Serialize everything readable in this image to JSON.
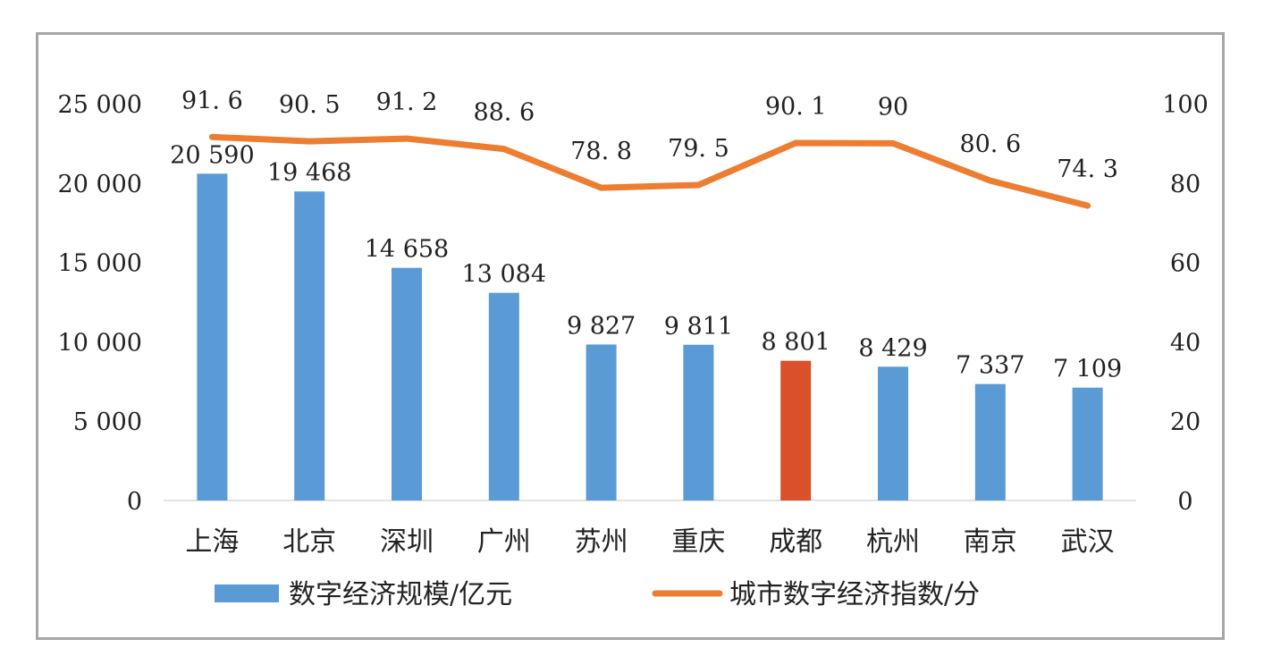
{
  "chart_data": {
    "type": "bar",
    "categories": [
      "上海",
      "北京",
      "深圳",
      "广州",
      "苏州",
      "重庆",
      "成都",
      "杭州",
      "南京",
      "武汉"
    ],
    "series": [
      {
        "name": "数字经济规模/亿元",
        "type": "bar",
        "axis": "left",
        "values": [
          20590,
          19468,
          14658,
          13084,
          9827,
          9811,
          8801,
          8429,
          7337,
          7109
        ],
        "labels": [
          "20 590",
          "19 468",
          "14 658",
          "13 084",
          "9 827",
          "9 811",
          "8 801",
          "8 429",
          "7 337",
          "7 109"
        ],
        "color": "#5b9bd5",
        "highlight_index": 6,
        "highlight_color": "#d9502b"
      },
      {
        "name": "城市数字经济指数/分",
        "type": "line",
        "axis": "right",
        "values": [
          91.6,
          90.5,
          91.2,
          88.6,
          78.8,
          79.5,
          90.1,
          90,
          80.6,
          74.3
        ],
        "labels": [
          "91. 6",
          "90. 5",
          "91. 2",
          "88. 6",
          "78. 8",
          "79. 5",
          "90. 1",
          "90",
          "80. 6",
          "74. 3"
        ],
        "color": "#ed7d31"
      }
    ],
    "y_left": {
      "ylim": [
        0,
        25000
      ],
      "ticks": [
        0,
        5000,
        10000,
        15000,
        20000,
        25000
      ],
      "tick_labels": [
        "0",
        "5 000",
        "10 000",
        "15 000",
        "20 000",
        "25 000"
      ]
    },
    "y_right": {
      "ylim": [
        0,
        100
      ],
      "ticks": [
        0,
        20,
        40,
        60,
        80,
        100
      ],
      "tick_labels": [
        "0",
        "20",
        "40",
        "60",
        "80",
        "100"
      ]
    },
    "grid": false,
    "legend_position": "bottom"
  }
}
